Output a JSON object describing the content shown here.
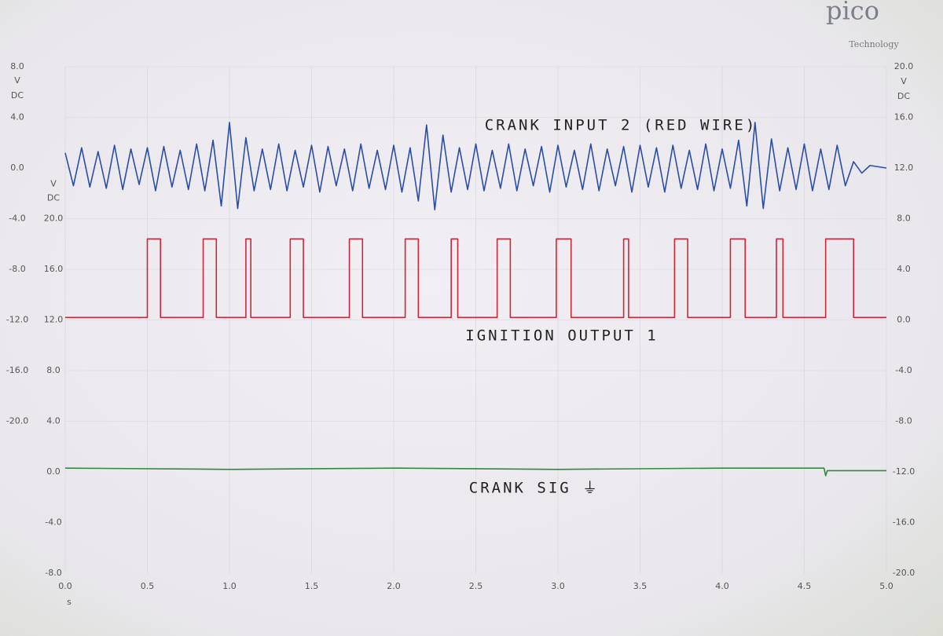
{
  "chart_data": {
    "type": "line",
    "logo": {
      "name": "pico",
      "tagline": "Technology"
    },
    "annotations": [
      "CRANK INPUT 2 (RED WIRE)",
      "IGNITION OUTPUT 1",
      "CRANK SIG ⏚"
    ],
    "xlabel": "s",
    "xlim": [
      0,
      5
    ],
    "xticks": [
      {
        "value": 0,
        "label": "0.0"
      },
      {
        "value": 0.5,
        "label": "0.5"
      },
      {
        "value": 1,
        "label": "1.0"
      },
      {
        "value": 1.5,
        "label": "1.5"
      },
      {
        "value": 2,
        "label": "2.0"
      },
      {
        "value": 2.5,
        "label": "2.5"
      },
      {
        "value": 3,
        "label": "3.0"
      },
      {
        "value": 3.5,
        "label": "3.5"
      },
      {
        "value": 4,
        "label": "4.0"
      },
      {
        "value": 4.5,
        "label": "4.5"
      },
      {
        "value": 5,
        "label": "5.0"
      }
    ],
    "grid": true,
    "axes": [
      {
        "unit": "V",
        "coupling": "DC",
        "ylim": [
          -32,
          8
        ],
        "yticks": [
          {
            "value": 8,
            "label": "8.0"
          },
          {
            "value": 4,
            "label": "4.0"
          },
          {
            "value": 0,
            "label": "0.0"
          },
          {
            "value": -4,
            "label": "-4.0"
          },
          {
            "value": -8,
            "label": "-8.0"
          },
          {
            "value": -12,
            "label": "-12.0"
          },
          {
            "value": -16,
            "label": "-16.0"
          },
          {
            "value": -20,
            "label": "-20.0"
          }
        ]
      },
      {
        "unit": "V",
        "coupling": "DC",
        "ylim": [
          -8,
          32
        ],
        "yticks": [
          {
            "value": 20,
            "label": "20.0"
          },
          {
            "value": 16,
            "label": "16.0"
          },
          {
            "value": 12,
            "label": "12.0"
          },
          {
            "value": 8,
            "label": "8.0"
          },
          {
            "value": 4,
            "label": "4.0"
          },
          {
            "value": 0,
            "label": "0.0"
          },
          {
            "value": -4,
            "label": "-4.0"
          },
          {
            "value": -8,
            "label": "-8.0"
          }
        ]
      },
      {
        "unit": "V",
        "coupling": "DC",
        "ylim": [
          -20,
          20
        ],
        "yticks": [
          {
            "value": 20,
            "label": "20.0"
          },
          {
            "value": 16,
            "label": "16.0"
          },
          {
            "value": 12,
            "label": "12.0"
          },
          {
            "value": 8,
            "label": "8.0"
          },
          {
            "value": 4,
            "label": "4.0"
          },
          {
            "value": 0,
            "label": "0.0"
          },
          {
            "value": -4,
            "label": "-4.0"
          },
          {
            "value": -8,
            "label": "-8.0"
          },
          {
            "value": -12,
            "label": "-12.0"
          },
          {
            "value": -16,
            "label": "-16.0"
          },
          {
            "value": -20,
            "label": "-20.0"
          }
        ]
      }
    ],
    "series": [
      {
        "color": "#2a4ea6",
        "axis": 0,
        "x": [
          0,
          0.05,
          0.1,
          0.15,
          0.2,
          0.25,
          0.3,
          0.35,
          0.4,
          0.45,
          0.5,
          0.55,
          0.6,
          0.65,
          0.7,
          0.75,
          0.8,
          0.85,
          0.9,
          0.95,
          1,
          1.05,
          1.1,
          1.15,
          1.2,
          1.25,
          1.3,
          1.35,
          1.4,
          1.45,
          1.5,
          1.55,
          1.6,
          1.65,
          1.7,
          1.75,
          1.8,
          1.85,
          1.9,
          1.95,
          2,
          2.05,
          2.1,
          2.15,
          2.2,
          2.25,
          2.3,
          2.35,
          2.4,
          2.45,
          2.5,
          2.55,
          2.6,
          2.65,
          2.7,
          2.75,
          2.8,
          2.85,
          2.9,
          2.95,
          3,
          3.05,
          3.1,
          3.15,
          3.2,
          3.25,
          3.3,
          3.35,
          3.4,
          3.45,
          3.5,
          3.55,
          3.6,
          3.65,
          3.7,
          3.75,
          3.8,
          3.85,
          3.9,
          3.95,
          4,
          4.05,
          4.1,
          4.15,
          4.2,
          4.25,
          4.3,
          4.35,
          4.4,
          4.45,
          4.5,
          4.55,
          4.6,
          4.65,
          4.7,
          4.75,
          4.8,
          4.85,
          4.9,
          5
        ],
        "values": [
          1.2,
          -1.4,
          1.6,
          -1.5,
          1.3,
          -1.6,
          1.8,
          -1.7,
          1.5,
          -1.3,
          1.6,
          -1.8,
          1.7,
          -1.5,
          1.4,
          -1.7,
          1.9,
          -1.8,
          2.2,
          -3.0,
          3.6,
          -3.2,
          2.4,
          -1.8,
          1.5,
          -1.7,
          1.9,
          -1.8,
          1.4,
          -1.5,
          1.8,
          -1.9,
          1.7,
          -1.4,
          1.5,
          -1.8,
          1.9,
          -1.6,
          1.4,
          -1.7,
          1.8,
          -1.9,
          1.6,
          -2.6,
          3.4,
          -3.3,
          2.6,
          -1.9,
          1.6,
          -1.7,
          1.9,
          -1.8,
          1.4,
          -1.6,
          1.9,
          -1.8,
          1.5,
          -1.4,
          1.7,
          -1.9,
          1.8,
          -1.5,
          1.4,
          -1.7,
          1.9,
          -1.8,
          1.5,
          -1.4,
          1.7,
          -1.9,
          1.8,
          -1.5,
          1.6,
          -1.9,
          1.8,
          -1.6,
          1.4,
          -1.7,
          1.9,
          -1.8,
          1.5,
          -1.6,
          2.2,
          -3.0,
          3.6,
          -3.2,
          2.3,
          -1.8,
          1.6,
          -1.7,
          1.9,
          -1.8,
          1.5,
          -1.7,
          1.8,
          -1.4,
          0.5,
          -0.4,
          0.2,
          0
        ]
      },
      {
        "color": "#c8283c",
        "axis": 1,
        "x": [
          0,
          0.5,
          0.5,
          0.58,
          0.58,
          0.84,
          0.84,
          0.92,
          0.92,
          1.1,
          1.1,
          1.13,
          1.13,
          1.37,
          1.37,
          1.45,
          1.45,
          1.73,
          1.73,
          1.81,
          1.81,
          2.07,
          2.07,
          2.15,
          2.15,
          2.35,
          2.35,
          2.39,
          2.39,
          2.63,
          2.63,
          2.71,
          2.71,
          2.99,
          2.99,
          3.08,
          3.08,
          3.4,
          3.4,
          3.43,
          3.43,
          3.71,
          3.71,
          3.79,
          3.79,
          4.05,
          4.05,
          4.14,
          4.14,
          4.33,
          4.33,
          4.37,
          4.37,
          4.63,
          4.63,
          4.8,
          4.8,
          5
        ],
        "values": [
          12.2,
          12.2,
          18.4,
          18.4,
          12.2,
          12.2,
          18.4,
          18.4,
          12.2,
          12.2,
          18.4,
          18.4,
          12.2,
          12.2,
          18.4,
          18.4,
          12.2,
          12.2,
          18.4,
          18.4,
          12.2,
          12.2,
          18.4,
          18.4,
          12.2,
          12.2,
          18.4,
          18.4,
          12.2,
          12.2,
          18.4,
          18.4,
          12.2,
          12.2,
          18.4,
          18.4,
          12.2,
          12.2,
          18.4,
          18.4,
          12.2,
          12.2,
          18.4,
          18.4,
          12.2,
          12.2,
          18.4,
          18.4,
          12.2,
          12.2,
          18.4,
          18.4,
          12.2,
          12.2,
          18.4,
          18.4,
          12.2,
          12.2
        ]
      },
      {
        "color": "#2e8a3e",
        "axis": 1,
        "x": [
          0,
          1,
          2,
          3,
          4,
          4.62,
          4.63,
          4.64,
          5
        ],
        "values": [
          0.3,
          0.2,
          0.3,
          0.2,
          0.3,
          0.3,
          -0.3,
          0.1,
          0.1
        ]
      }
    ]
  }
}
